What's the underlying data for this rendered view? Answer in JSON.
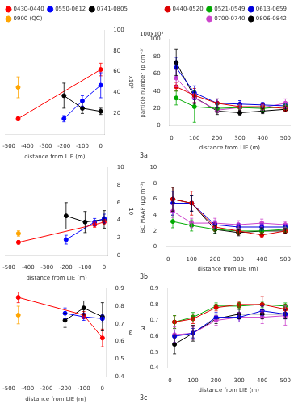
{
  "chart_data": [
    {
      "type": "line",
      "marker": "circle",
      "grid": false,
      "legend": "upper left",
      "xlabel": "distance from LIE (m)",
      "ylabel": "x10³",
      "xlim": [
        -520,
        20
      ],
      "xticks": [
        -500,
        -400,
        -300,
        -200,
        -100,
        0
      ],
      "ylim": [
        0,
        100
      ],
      "yticks": [
        20,
        40,
        60,
        80,
        100
      ],
      "series": [
        {
          "name": "0430-0440",
          "color": "red",
          "line_style": "solid",
          "x": [
            -450,
            0
          ],
          "values": [
            15,
            62
          ],
          "yerr": [
            2,
            6
          ]
        },
        {
          "name": "0550-0612",
          "color": "blue",
          "line_style": "solid",
          "x": [
            -200,
            -100,
            0
          ],
          "values": [
            15,
            32,
            47
          ],
          "yerr": [
            3,
            5,
            12
          ]
        },
        {
          "name": "0741-0805",
          "color": "black",
          "line_style": "solid",
          "x": [
            -200,
            -100,
            0
          ],
          "values": [
            37,
            25,
            22
          ],
          "yerr": [
            12,
            5,
            3
          ]
        },
        {
          "name": "0900 (QC)",
          "color": "orange",
          "line_style": "none",
          "x": [
            -450
          ],
          "values": [
            45
          ],
          "yerr": [
            10
          ]
        }
      ]
    },
    {
      "type": "line",
      "marker": "circle",
      "grid": false,
      "legend": "upper right",
      "title": "3a",
      "annotations": [
        "100x10³"
      ],
      "xlabel": "distance from LIE (m)",
      "ylabel": "particle number (p cm⁻³)",
      "xlim": [
        -10,
        520
      ],
      "xticks": [
        0,
        100,
        200,
        300,
        400,
        500
      ],
      "ylim": [
        0,
        100
      ],
      "yticks": [
        0,
        20,
        40,
        60,
        80,
        100
      ],
      "series": [
        {
          "name": "0440-0520",
          "color": "#dd0000",
          "line_style": "solid",
          "x": [
            20,
            100,
            200,
            300,
            400,
            500
          ],
          "values": [
            45,
            35,
            26,
            22,
            22,
            20
          ],
          "yerr": [
            5,
            8,
            5,
            4,
            3,
            3
          ]
        },
        {
          "name": "0521-0549",
          "color": "#00aa00",
          "line_style": "solid",
          "x": [
            20,
            100,
            200,
            300,
            400,
            500
          ],
          "values": [
            32,
            22,
            20,
            21,
            20,
            22
          ],
          "yerr": [
            8,
            18,
            5,
            3,
            3,
            3
          ]
        },
        {
          "name": "0613-0659",
          "color": "#0000dd",
          "line_style": "solid",
          "x": [
            20,
            100,
            200,
            300,
            400,
            500
          ],
          "values": [
            67,
            38,
            26,
            25,
            24,
            23
          ],
          "yerr": [
            12,
            8,
            5,
            4,
            3,
            3
          ]
        },
        {
          "name": "0700-0740",
          "color": "#cc44cc",
          "line_style": "solid",
          "x": [
            20,
            100,
            200,
            300,
            400,
            500
          ],
          "values": [
            55,
            32,
            18,
            21,
            21,
            26
          ],
          "yerr": [
            10,
            5,
            3,
            3,
            3,
            5
          ]
        },
        {
          "name": "0806-0842",
          "color": "black",
          "line_style": "solid",
          "x": [
            20,
            100,
            200,
            300,
            400,
            500
          ],
          "values": [
            73,
            33,
            17,
            15,
            17,
            19
          ],
          "yerr": [
            15,
            8,
            4,
            3,
            3,
            3
          ]
        }
      ]
    },
    {
      "type": "line",
      "marker": "circle",
      "grid": false,
      "xlabel": "distance from LIE (m)",
      "ylabel": "10",
      "xlim": [
        -520,
        20
      ],
      "xticks": [
        -500,
        -400,
        -300,
        -200,
        -100,
        0
      ],
      "ylim": [
        0,
        10
      ],
      "yticks": [
        0,
        2,
        4,
        6,
        8,
        10
      ],
      "series": [
        {
          "color": "red",
          "line_style": "solid",
          "x": [
            -450,
            -50,
            0
          ],
          "values": [
            1.5,
            3.5,
            3.8
          ],
          "yerr": [
            0.2,
            0.3,
            0.3
          ]
        },
        {
          "color": "blue",
          "line_style": "solid",
          "x": [
            -200,
            -50,
            0
          ],
          "values": [
            1.8,
            3.8,
            4.2
          ],
          "yerr": [
            0.5,
            0.4,
            0.5
          ]
        },
        {
          "color": "black",
          "line_style": "solid",
          "x": [
            -200,
            -100,
            0
          ],
          "values": [
            4.5,
            3.8,
            4.1
          ],
          "yerr": [
            1.5,
            1.2,
            1.0
          ]
        },
        {
          "color": "orange",
          "line_style": "none",
          "x": [
            -450
          ],
          "values": [
            2.5
          ],
          "yerr": [
            0.3
          ]
        }
      ]
    },
    {
      "type": "line",
      "marker": "circle",
      "grid": false,
      "title": "3b",
      "xlabel": "distance from LIE (m)",
      "ylabel": "BC MAAP (μg m⁻³)",
      "xlim": [
        -10,
        520
      ],
      "xticks": [
        0,
        100,
        200,
        300,
        400,
        500
      ],
      "ylim": [
        0,
        10
      ],
      "yticks": [
        0,
        2,
        4,
        6,
        8,
        10
      ],
      "series": [
        {
          "color": "#dd0000",
          "line_style": "solid",
          "x": [
            20,
            100,
            200,
            300,
            400,
            500
          ],
          "values": [
            6.0,
            5.5,
            2.5,
            2.0,
            1.5,
            2.0
          ],
          "yerr": [
            1.5,
            1.5,
            0.5,
            0.5,
            0.3,
            0.3
          ]
        },
        {
          "color": "#00aa00",
          "line_style": "solid",
          "x": [
            20,
            100,
            200,
            300,
            400,
            500
          ],
          "values": [
            3.2,
            2.7,
            2.2,
            2.0,
            2.0,
            2.2
          ],
          "yerr": [
            0.8,
            0.7,
            0.5,
            0.4,
            0.3,
            0.3
          ]
        },
        {
          "color": "#0000dd",
          "line_style": "solid",
          "x": [
            20,
            100,
            200,
            300,
            400,
            500
          ],
          "values": [
            5.5,
            5.5,
            2.8,
            2.5,
            2.5,
            2.5
          ],
          "yerr": [
            1.5,
            1.0,
            0.5,
            0.4,
            0.4,
            0.3
          ]
        },
        {
          "color": "#cc44cc",
          "line_style": "solid",
          "x": [
            20,
            100,
            200,
            300,
            400,
            500
          ],
          "values": [
            4.5,
            3.0,
            3.0,
            2.8,
            3.0,
            2.8
          ],
          "yerr": [
            0.8,
            0.6,
            0.6,
            0.5,
            0.5,
            0.4
          ]
        },
        {
          "color": "black",
          "line_style": "solid",
          "x": [
            20,
            100,
            200,
            300,
            400,
            500
          ],
          "values": [
            6.0,
            5.5,
            2.2,
            1.8,
            2.0,
            2.0
          ],
          "yerr": [
            1.5,
            1.0,
            0.5,
            0.4,
            0.4,
            0.3
          ]
        }
      ]
    },
    {
      "type": "line",
      "marker": "circle",
      "grid": false,
      "xlabel": "distance from LIE (m)",
      "ylabel": "ω",
      "xlim": [
        -520,
        20
      ],
      "xticks": [
        -500,
        -400,
        -300,
        -200,
        -100,
        0
      ],
      "ylim": [
        0.4,
        0.9
      ],
      "yticks": [
        0.4,
        0.5,
        0.6,
        0.7,
        0.8,
        0.9
      ],
      "series": [
        {
          "color": "red",
          "line_style": "solid",
          "x": [
            -450,
            -100,
            0
          ],
          "values": [
            0.85,
            0.75,
            0.62
          ],
          "yerr": [
            0.03,
            0.02,
            0.05
          ]
        },
        {
          "color": "blue",
          "line_style": "solid",
          "x": [
            -200,
            -100,
            0
          ],
          "values": [
            0.76,
            0.74,
            0.73
          ],
          "yerr": [
            0.03,
            0.02,
            0.02
          ]
        },
        {
          "color": "black",
          "line_style": "solid",
          "x": [
            -200,
            -100,
            0
          ],
          "values": [
            0.72,
            0.79,
            0.74
          ],
          "yerr": [
            0.04,
            0.04,
            0.08
          ]
        },
        {
          "color": "orange",
          "line_style": "none",
          "x": [
            -450
          ],
          "values": [
            0.75
          ],
          "yerr": [
            0.05
          ]
        }
      ]
    },
    {
      "type": "line",
      "marker": "circle",
      "grid": false,
      "title": "3c",
      "xlabel": "distance from LIE (m)",
      "ylabel": "ω",
      "xlim": [
        -10,
        520
      ],
      "xticks": [
        0,
        100,
        200,
        300,
        400,
        500
      ],
      "ylim": [
        0.4,
        0.9
      ],
      "yticks": [
        0.4,
        0.5,
        0.6,
        0.7,
        0.8,
        0.9
      ],
      "series": [
        {
          "color": "#dd0000",
          "line_style": "solid",
          "x": [
            20,
            100,
            200,
            300,
            400,
            500
          ],
          "values": [
            0.69,
            0.71,
            0.78,
            0.8,
            0.8,
            0.77
          ],
          "yerr": [
            0.04,
            0.03,
            0.02,
            0.02,
            0.05,
            0.03
          ]
        },
        {
          "color": "#00aa00",
          "line_style": "solid",
          "x": [
            20,
            100,
            200,
            300,
            400,
            500
          ],
          "values": [
            0.69,
            0.72,
            0.79,
            0.79,
            0.8,
            0.79
          ],
          "yerr": [
            0.04,
            0.03,
            0.02,
            0.02,
            0.02,
            0.02
          ]
        },
        {
          "color": "#0000dd",
          "line_style": "solid",
          "x": [
            20,
            100,
            200,
            300,
            400,
            500
          ],
          "values": [
            0.6,
            0.62,
            0.72,
            0.72,
            0.76,
            0.74
          ],
          "yerr": [
            0.04,
            0.03,
            0.03,
            0.03,
            0.03,
            0.03
          ]
        },
        {
          "color": "#cc44cc",
          "line_style": "solid",
          "x": [
            20,
            100,
            200,
            300,
            400,
            500
          ],
          "values": [
            0.61,
            0.62,
            0.7,
            0.72,
            0.72,
            0.73
          ],
          "yerr": [
            0.05,
            0.04,
            0.03,
            0.03,
            0.04,
            0.06
          ]
        },
        {
          "color": "black",
          "line_style": "solid",
          "x": [
            20,
            100,
            200,
            300,
            400,
            500
          ],
          "values": [
            0.55,
            0.62,
            0.71,
            0.74,
            0.74,
            0.74
          ],
          "yerr": [
            0.06,
            0.05,
            0.03,
            0.03,
            0.03,
            0.03
          ]
        }
      ]
    }
  ]
}
